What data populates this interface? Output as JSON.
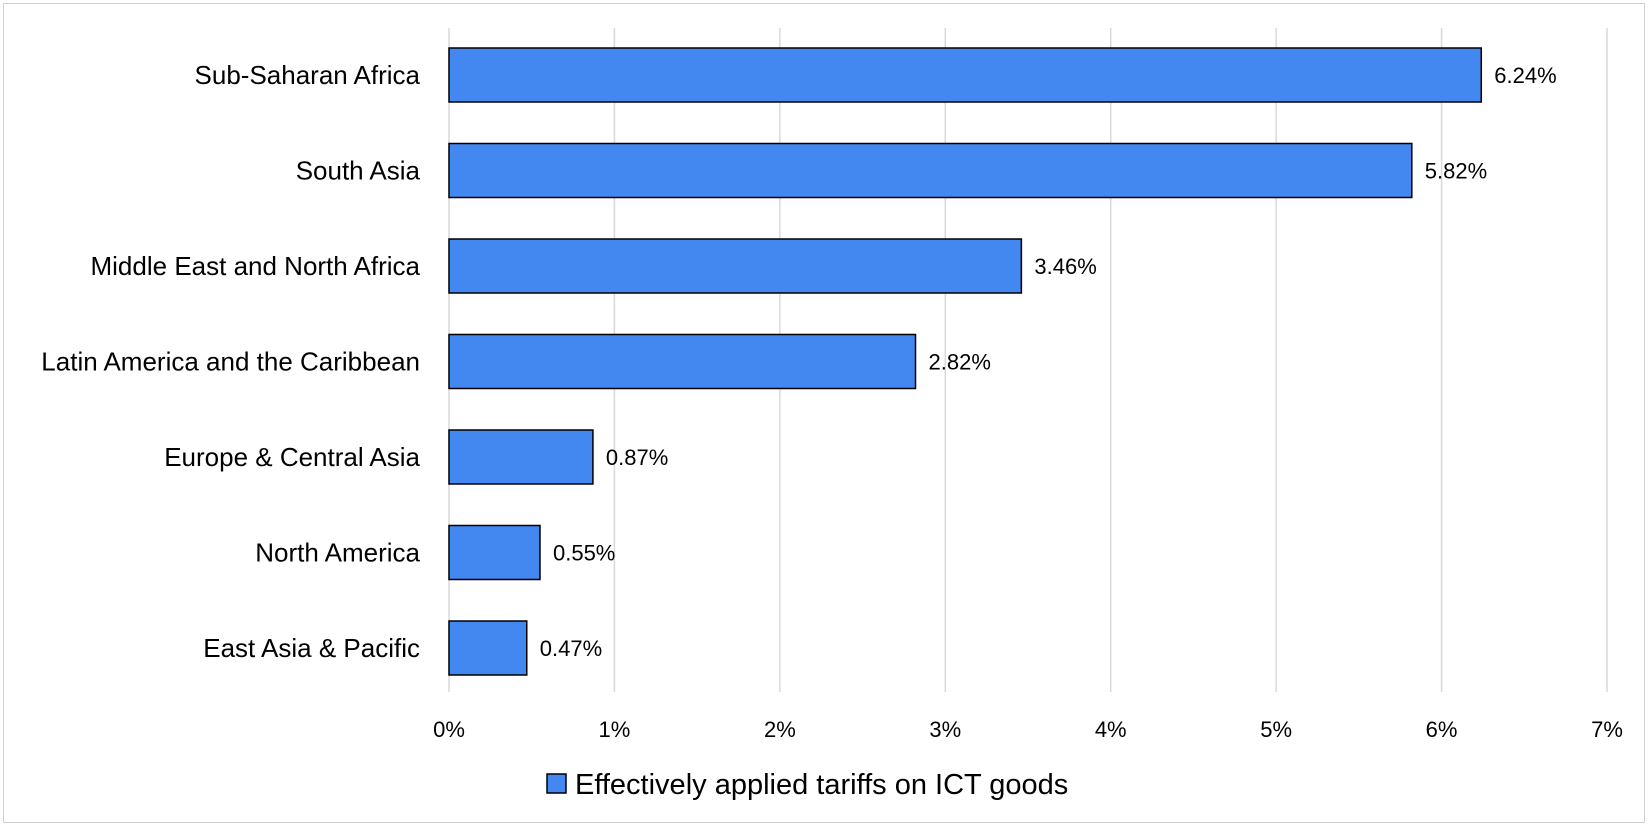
{
  "chart_data": {
    "type": "bar",
    "orientation": "horizontal",
    "categories": [
      "Sub-Saharan Africa",
      "South Asia",
      "Middle East and North Africa",
      "Latin America and the Caribbean",
      "Europe & Central Asia",
      "North America",
      "East Asia & Pacific"
    ],
    "series": [
      {
        "name": "Effectively applied tariffs on ICT goods",
        "values": [
          6.24,
          5.82,
          3.46,
          2.82,
          0.87,
          0.55,
          0.47
        ],
        "data_labels": [
          "6.24%",
          "5.82%",
          "3.46%",
          "2.82%",
          "0.87%",
          "0.55%",
          "0.47%"
        ],
        "color": "#4388f0"
      }
    ],
    "xlim": [
      0,
      7
    ],
    "x_ticks": [
      0,
      1,
      2,
      3,
      4,
      5,
      6,
      7
    ],
    "x_tick_labels": [
      "0%",
      "1%",
      "2%",
      "3%",
      "4%",
      "5%",
      "6%",
      "7%"
    ],
    "title": "",
    "xlabel": "",
    "ylabel": "",
    "grid": "vertical",
    "legend_position": "bottom",
    "colors": {
      "bar": "#4388f0",
      "bar_border": "#000000",
      "grid": "#d9d9d9"
    }
  }
}
